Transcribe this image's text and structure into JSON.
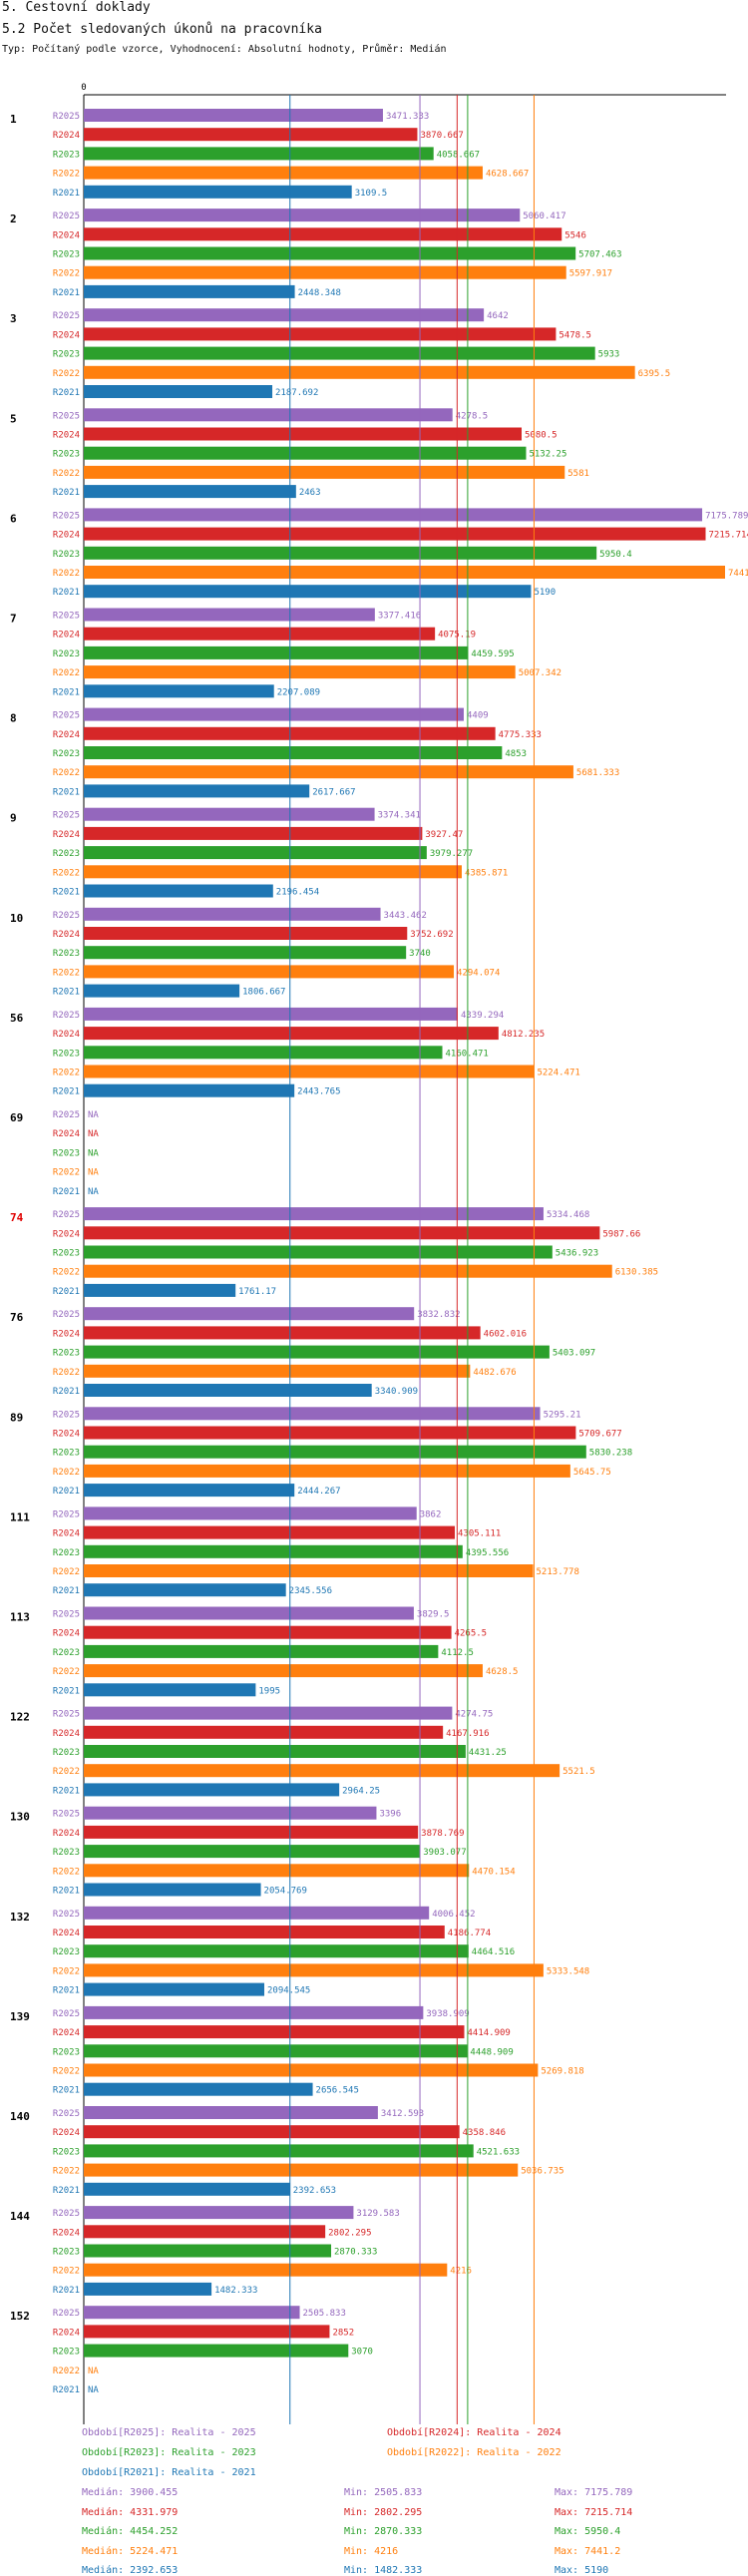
{
  "header": {
    "title": "5. Cestovní doklady",
    "subtitle": "5.2 Počet sledovaných úkonů na pracovníka",
    "typ_line": "Typ: Počítaný podle vzorce, Vyhodnocení: Absolutní hodnoty, Průměr: Medián"
  },
  "colors": {
    "R2025": "#9467bd",
    "R2024": "#d62728",
    "R2023": "#2ca02c",
    "R2022": "#ff7f0e",
    "R2021": "#1f77b4",
    "highlight_group": "#e00000",
    "axis": "#000000"
  },
  "chart_data": {
    "type": "bar",
    "orientation": "horizontal",
    "axis_zero_label": "0",
    "xlim": [
      0,
      7441.2
    ],
    "series_order": [
      "R2025",
      "R2024",
      "R2023",
      "R2022",
      "R2021"
    ],
    "na_label": "NA",
    "highlight_group": "74",
    "groups": [
      {
        "id": "1",
        "values": [
          3471.333,
          3870.667,
          4058.667,
          4628.667,
          3109.5
        ]
      },
      {
        "id": "2",
        "values": [
          5060.417,
          5546,
          5707.463,
          5597.917,
          2448.348
        ]
      },
      {
        "id": "3",
        "values": [
          4642,
          5478.5,
          5933,
          6395.5,
          2187.692
        ]
      },
      {
        "id": "5",
        "values": [
          4278.5,
          5080.5,
          5132.25,
          5581,
          2463
        ]
      },
      {
        "id": "6",
        "values": [
          7175.789,
          7215.714,
          5950.4,
          7441.2,
          5190
        ]
      },
      {
        "id": "7",
        "values": [
          3377.416,
          4075.19,
          4459.595,
          5007.342,
          2207.089
        ]
      },
      {
        "id": "8",
        "values": [
          4409,
          4775.333,
          4853,
          5681.333,
          2617.667
        ]
      },
      {
        "id": "9",
        "values": [
          3374.341,
          3927.47,
          3979.277,
          4385.871,
          2196.454
        ]
      },
      {
        "id": "10",
        "values": [
          3443.462,
          3752.692,
          3740,
          4294.074,
          1806.667
        ]
      },
      {
        "id": "56",
        "values": [
          4339.294,
          4812.235,
          4160.471,
          5224.471,
          2443.765
        ]
      },
      {
        "id": "69",
        "values": [
          null,
          null,
          null,
          null,
          null
        ]
      },
      {
        "id": "74",
        "values": [
          5334.468,
          5987.66,
          5436.923,
          6130.385,
          1761.17
        ]
      },
      {
        "id": "76",
        "values": [
          3832.832,
          4602.016,
          5403.097,
          4482.676,
          3340.909
        ]
      },
      {
        "id": "89",
        "values": [
          5295.21,
          5709.677,
          5830.238,
          5645.75,
          2444.267
        ]
      },
      {
        "id": "111",
        "values": [
          3862,
          4305.111,
          4395.556,
          5213.778,
          2345.556
        ]
      },
      {
        "id": "113",
        "values": [
          3829.5,
          4265.5,
          4112.5,
          4628.5,
          1995
        ]
      },
      {
        "id": "122",
        "values": [
          4274.75,
          4167.916,
          4431.25,
          5521.5,
          2964.25
        ]
      },
      {
        "id": "130",
        "values": [
          3396,
          3878.769,
          3903.077,
          4470.154,
          2054.769
        ]
      },
      {
        "id": "132",
        "values": [
          4006.452,
          4186.774,
          4464.516,
          5333.548,
          2094.545
        ]
      },
      {
        "id": "139",
        "values": [
          3938.909,
          4414.909,
          4448.909,
          5269.818,
          2656.545
        ]
      },
      {
        "id": "140",
        "values": [
          3412.593,
          4358.846,
          4521.633,
          5036.735,
          2392.653
        ]
      },
      {
        "id": "144",
        "values": [
          3129.583,
          2802.295,
          2870.333,
          4216,
          1482.333
        ]
      },
      {
        "id": "152",
        "values": [
          2505.833,
          2852,
          3070,
          null,
          null
        ]
      }
    ],
    "median_lines": {
      "R2025": 3900.455,
      "R2024": 4331.979,
      "R2023": 4454.252,
      "R2022": 5224.471,
      "R2021": 2392.653
    }
  },
  "legend": [
    {
      "key": "R2025",
      "text": "Období[R2025]: Realita - 2025"
    },
    {
      "key": "R2024",
      "text": "Období[R2024]: Realita - 2024"
    },
    {
      "key": "R2023",
      "text": "Období[R2023]: Realita - 2023"
    },
    {
      "key": "R2022",
      "text": "Období[R2022]: Realita - 2022"
    },
    {
      "key": "R2021",
      "text": "Období[R2021]: Realita - 2021"
    }
  ],
  "stats": [
    {
      "key": "R2025",
      "median": "Medián: 3900.455",
      "min": "Min: 2505.833",
      "max": "Max: 7175.789"
    },
    {
      "key": "R2024",
      "median": "Medián: 4331.979",
      "min": "Min: 2802.295",
      "max": "Max: 7215.714"
    },
    {
      "key": "R2023",
      "median": "Medián: 4454.252",
      "min": "Min: 2870.333",
      "max": "Max: 5950.4"
    },
    {
      "key": "R2022",
      "median": "Medián: 5224.471",
      "min": "Min: 4216",
      "max": "Max: 7441.2"
    },
    {
      "key": "R2021",
      "median": "Medián: 2392.653",
      "min": "Min: 1482.333",
      "max": "Max: 5190"
    }
  ]
}
